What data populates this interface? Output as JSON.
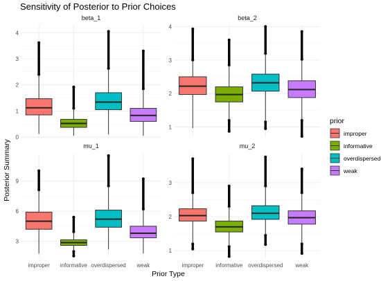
{
  "chart_data": {
    "type": "boxplot",
    "title": "Sensitivity of Posterior to Prior Choices",
    "xlabel": "Prior Type",
    "ylabel": "Posterior Summary",
    "categories": [
      "improper",
      "informative",
      "overdispersed",
      "weak"
    ],
    "legend": {
      "title": "prior",
      "position": "right",
      "items": [
        {
          "label": "improper",
          "color": "#F8766D"
        },
        {
          "label": "informative",
          "color": "#7CAE00"
        },
        {
          "label": "overdispersed",
          "color": "#00BFC4"
        },
        {
          "label": "weak",
          "color": "#C77CFF"
        }
      ]
    },
    "panels": [
      {
        "name": "beta_1",
        "ylim": [
          0,
          4.3
        ],
        "yticks": [
          0,
          1,
          2,
          3,
          4
        ],
        "boxes": [
          {
            "category": "improper",
            "lower": 0.12,
            "q1": 0.85,
            "median": 1.12,
            "q3": 1.47,
            "upper": 2.4,
            "outliers_to": 3.62
          },
          {
            "category": "informative",
            "lower": 0.05,
            "q1": 0.37,
            "median": 0.52,
            "q3": 0.68,
            "upper": 1.1,
            "outliers_to": 1.92
          },
          {
            "category": "overdispersed",
            "lower": 0.1,
            "q1": 1.05,
            "median": 1.34,
            "q3": 1.7,
            "upper": 2.63,
            "outliers_to": 4.05
          },
          {
            "category": "weak",
            "lower": 0.05,
            "q1": 0.6,
            "median": 0.83,
            "q3": 1.1,
            "upper": 1.85,
            "outliers_to": 3.3
          }
        ]
      },
      {
        "name": "beta_2",
        "ylim": [
          0.7,
          4.05
        ],
        "yticks": [
          1,
          2,
          3,
          4
        ],
        "boxes": [
          {
            "category": "improper",
            "lower": 0.97,
            "q1": 1.97,
            "median": 2.22,
            "q3": 2.5,
            "upper": 3.0,
            "outliers_to": 3.93,
            "low_outliers_to": 0.97
          },
          {
            "category": "informative",
            "lower": 1.2,
            "q1": 1.75,
            "median": 1.97,
            "q3": 2.2,
            "upper": 2.85,
            "outliers_to": 3.6,
            "low_outliers_to": 0.87
          },
          {
            "category": "overdispersed",
            "lower": 1.15,
            "q1": 2.07,
            "median": 2.32,
            "q3": 2.58,
            "upper": 3.2,
            "outliers_to": 4.0,
            "low_outliers_to": 0.95
          },
          {
            "category": "weak",
            "lower": 1.2,
            "q1": 1.88,
            "median": 2.12,
            "q3": 2.38,
            "upper": 3.02,
            "outliers_to": 3.85,
            "low_outliers_to": 0.72
          }
        ]
      },
      {
        "name": "mu_1",
        "ylim": [
          1.4,
          11.7
        ],
        "yticks": [
          3,
          6,
          9
        ],
        "boxes": [
          {
            "category": "improper",
            "lower": 1.8,
            "q1": 4.2,
            "median": 5.0,
            "q3": 5.9,
            "upper": 8.1,
            "outliers_to": 10.0
          },
          {
            "category": "informative",
            "lower": 2.0,
            "q1": 2.6,
            "median": 2.88,
            "q3": 3.15,
            "upper": 3.95,
            "outliers_to": 5.4,
            "low_outliers_to": 1.55
          },
          {
            "category": "overdispersed",
            "lower": 2.2,
            "q1": 4.4,
            "median": 5.2,
            "q3": 6.1,
            "upper": 8.5,
            "outliers_to": 11.5
          },
          {
            "category": "weak",
            "lower": 1.8,
            "q1": 3.35,
            "median": 3.8,
            "q3": 4.5,
            "upper": 6.2,
            "outliers_to": 9.2
          }
        ]
      },
      {
        "name": "mu_2",
        "ylim": [
          0.8,
          3.85
        ],
        "yticks": [
          1,
          2,
          3
        ],
        "boxes": [
          {
            "category": "improper",
            "lower": 1.2,
            "q1": 1.87,
            "median": 2.03,
            "q3": 2.23,
            "upper": 2.7,
            "outliers_to": 3.7,
            "low_outliers_to": 1.05
          },
          {
            "category": "informative",
            "lower": 1.12,
            "q1": 1.55,
            "median": 1.7,
            "q3": 1.87,
            "upper": 2.3,
            "outliers_to": 2.9,
            "low_outliers_to": 0.83
          },
          {
            "category": "overdispersed",
            "lower": 1.45,
            "q1": 1.92,
            "median": 2.1,
            "q3": 2.32,
            "upper": 2.9,
            "outliers_to": 3.75,
            "low_outliers_to": 1.18
          },
          {
            "category": "weak",
            "lower": 1.2,
            "q1": 1.78,
            "median": 1.97,
            "q3": 2.17,
            "upper": 2.7,
            "outliers_to": 3.4,
            "low_outliers_to": 0.92
          }
        ]
      }
    ]
  }
}
